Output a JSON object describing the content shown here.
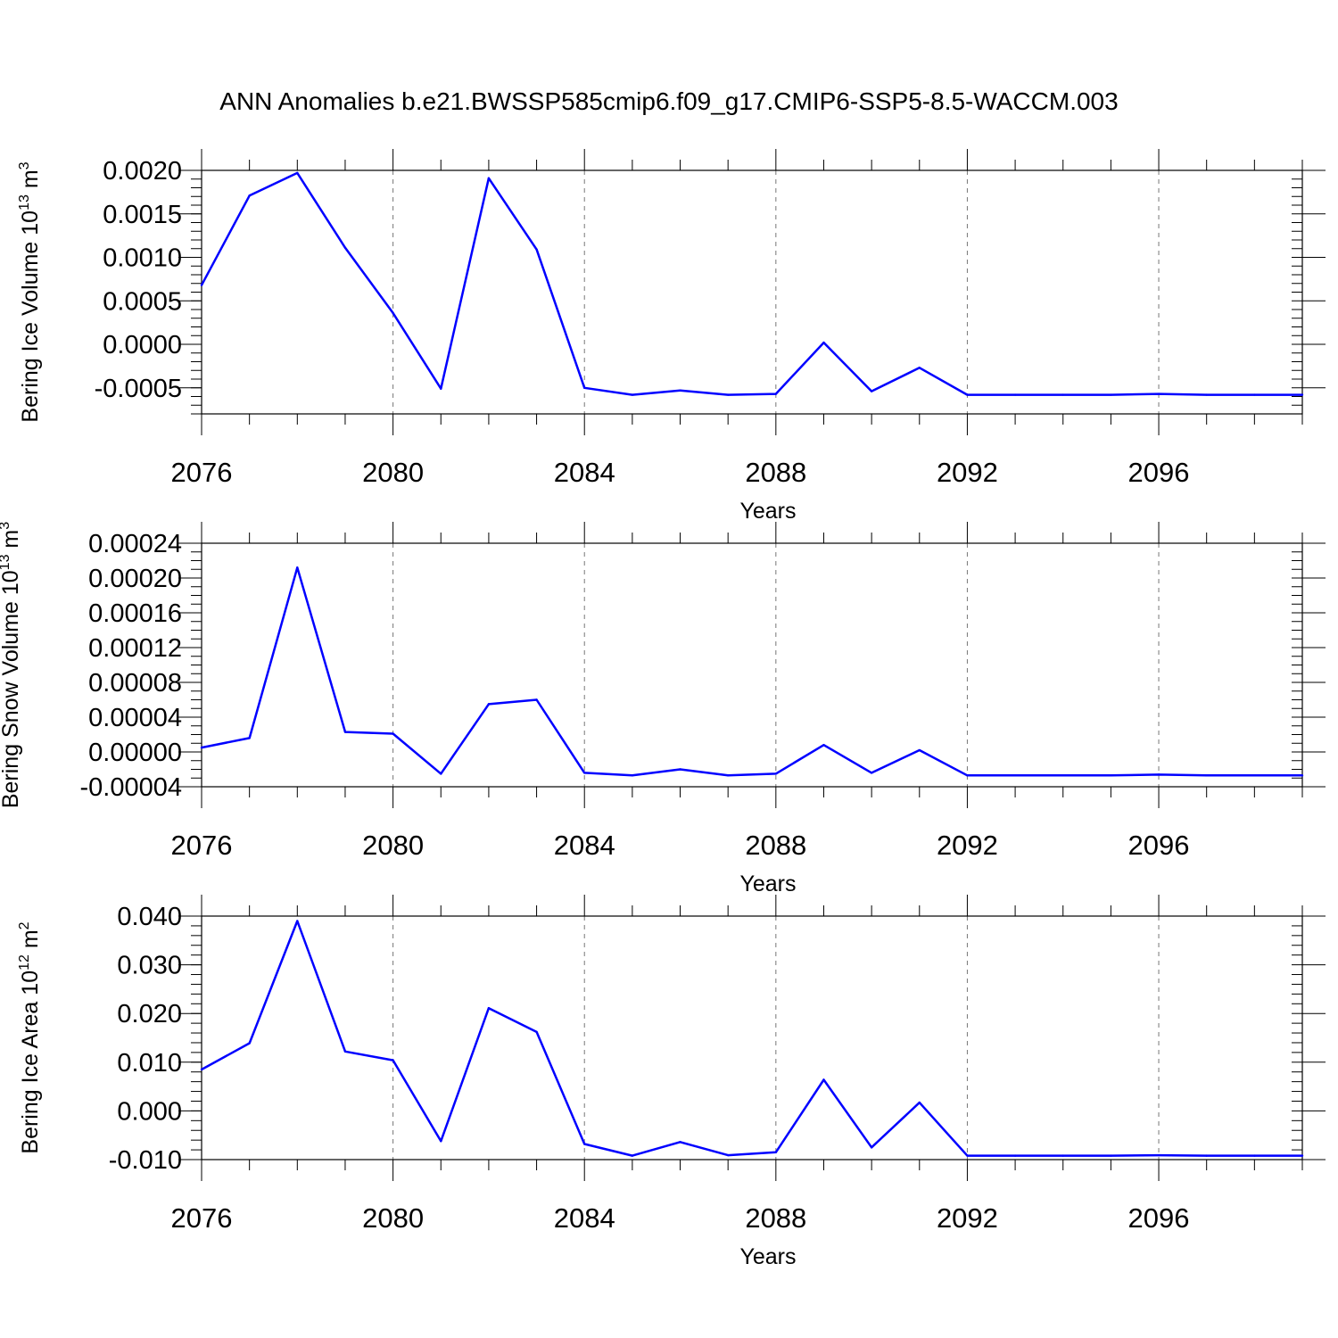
{
  "figure": {
    "title": "ANN Anomalies b.e21.BWSSP585cmip6.f09_g17.CMIP6-SSP5-8.5-WACCM.003"
  },
  "style": {
    "line_color": "#0000ff",
    "grid_color": "#777777"
  },
  "chart_data": [
    {
      "type": "line",
      "xlabel": "Years",
      "ylabel": {
        "text": "Bering Ice Volume 10",
        "sup": "13",
        "unit": "m",
        "unit_sup": "3"
      },
      "xlim": [
        2076,
        2099
      ],
      "ylim": [
        -0.0008,
        0.002
      ],
      "x_ticks": [
        2076,
        2080,
        2084,
        2088,
        2092,
        2096
      ],
      "x_tick_labels": [
        "2076",
        "2080",
        "2084",
        "2088",
        "2092",
        "2096"
      ],
      "y_ticks": [
        -0.0005,
        0.0,
        0.0005,
        0.001,
        0.0015,
        0.002
      ],
      "y_tick_labels": [
        "-0.0005",
        "0.0000",
        "0.0005",
        "0.0010",
        "0.0015",
        "0.0020"
      ],
      "y_minor_step": 0.0001,
      "grid": "vertical-dashed",
      "x": [
        2076,
        2077,
        2078,
        2079,
        2080,
        2081,
        2082,
        2083,
        2084,
        2085,
        2086,
        2087,
        2088,
        2089,
        2090,
        2091,
        2092,
        2093,
        2094,
        2095,
        2096,
        2097,
        2098,
        2099
      ],
      "values": [
        0.00068,
        0.00171,
        0.00197,
        0.00111,
        0.00036,
        -0.00051,
        0.00191,
        0.00109,
        -0.0005,
        -0.00058,
        -0.00053,
        -0.00058,
        -0.00057,
        2e-05,
        -0.00054,
        -0.00027,
        -0.00058,
        -0.00058,
        -0.00058,
        -0.00058,
        -0.00057,
        -0.00058,
        -0.00058,
        -0.00058
      ]
    },
    {
      "type": "line",
      "xlabel": "Years",
      "ylabel": {
        "text": "Bering Snow Volume 10",
        "sup": "13",
        "unit": "m",
        "unit_sup": "3"
      },
      "xlim": [
        2076,
        2099
      ],
      "ylim": [
        -4e-05,
        0.00024
      ],
      "x_ticks": [
        2076,
        2080,
        2084,
        2088,
        2092,
        2096
      ],
      "x_tick_labels": [
        "2076",
        "2080",
        "2084",
        "2088",
        "2092",
        "2096"
      ],
      "y_ticks": [
        -4e-05,
        0.0,
        4e-05,
        8e-05,
        0.00012,
        0.00016,
        0.0002,
        0.00024
      ],
      "y_tick_labels": [
        "-0.00004",
        "0.00000",
        "0.00004",
        "0.00008",
        "0.00012",
        "0.00016",
        "0.00020",
        "0.00024"
      ],
      "y_minor_step": 1e-05,
      "grid": "vertical-dashed",
      "x": [
        2076,
        2077,
        2078,
        2079,
        2080,
        2081,
        2082,
        2083,
        2084,
        2085,
        2086,
        2087,
        2088,
        2089,
        2090,
        2091,
        2092,
        2093,
        2094,
        2095,
        2096,
        2097,
        2098,
        2099
      ],
      "values": [
        5e-06,
        1.6e-05,
        0.000212,
        2.3e-05,
        2.1e-05,
        -2.5e-05,
        5.5e-05,
        6e-05,
        -2.4e-05,
        -2.7e-05,
        -2e-05,
        -2.7e-05,
        -2.5e-05,
        8e-06,
        -2.4e-05,
        2e-06,
        -2.7e-05,
        -2.7e-05,
        -2.7e-05,
        -2.7e-05,
        -2.6e-05,
        -2.7e-05,
        -2.7e-05,
        -2.7e-05
      ]
    },
    {
      "type": "line",
      "xlabel": "Years",
      "ylabel": {
        "text": "Bering Ice Area 10",
        "sup": "12",
        "unit": "m",
        "unit_sup": "2"
      },
      "xlim": [
        2076,
        2099
      ],
      "ylim": [
        -0.01,
        0.04
      ],
      "x_ticks": [
        2076,
        2080,
        2084,
        2088,
        2092,
        2096
      ],
      "x_tick_labels": [
        "2076",
        "2080",
        "2084",
        "2088",
        "2092",
        "2096"
      ],
      "y_ticks": [
        -0.01,
        0.0,
        0.01,
        0.02,
        0.03,
        0.04
      ],
      "y_tick_labels": [
        "-0.010",
        "0.000",
        "0.010",
        "0.020",
        "0.030",
        "0.040"
      ],
      "y_minor_step": 0.002,
      "grid": "vertical-dashed",
      "x": [
        2076,
        2077,
        2078,
        2079,
        2080,
        2081,
        2082,
        2083,
        2084,
        2085,
        2086,
        2087,
        2088,
        2089,
        2090,
        2091,
        2092,
        2093,
        2094,
        2095,
        2096,
        2097,
        2098,
        2099
      ],
      "values": [
        0.0085,
        0.0139,
        0.039,
        0.0122,
        0.0104,
        -0.0062,
        0.0211,
        0.0162,
        -0.0068,
        -0.0092,
        -0.0064,
        -0.0091,
        -0.0085,
        0.0064,
        -0.0075,
        0.0017,
        -0.0092,
        -0.0092,
        -0.0092,
        -0.0092,
        -0.0091,
        -0.0092,
        -0.0092,
        -0.0092
      ]
    }
  ]
}
